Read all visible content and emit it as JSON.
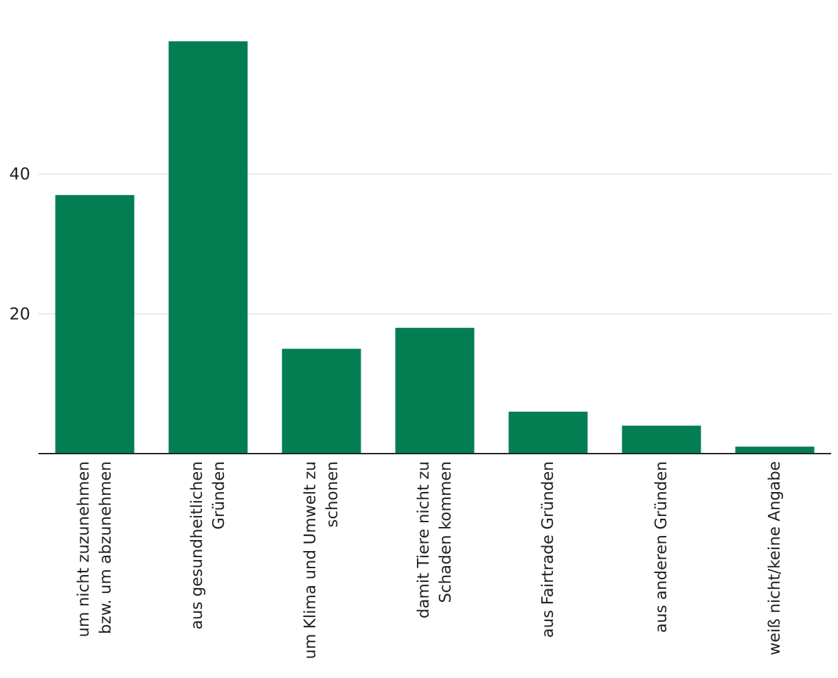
{
  "chart_data": {
    "type": "bar",
    "categories": [
      [
        "um nicht zuzunehmen",
        "bzw. um abzunehmen"
      ],
      [
        "aus gesundheitlichen",
        "Gründen"
      ],
      [
        "um Klima und Umwelt zu",
        "schonen"
      ],
      [
        "damit Tiere nicht zu",
        "Schaden kommen"
      ],
      [
        "aus Fairtrade Gründen"
      ],
      [
        "aus anderen Gründen"
      ],
      [
        "weiß nicht/keine Angabe"
      ]
    ],
    "values": [
      37,
      59,
      15,
      18,
      6,
      4,
      1
    ],
    "ylim": [
      0,
      60
    ],
    "yticks": [
      20,
      40
    ],
    "grid": true,
    "colors": {
      "bar": "#037e53",
      "grid": "#e3e3e3",
      "axis": "#222222",
      "text": "#222222"
    }
  }
}
